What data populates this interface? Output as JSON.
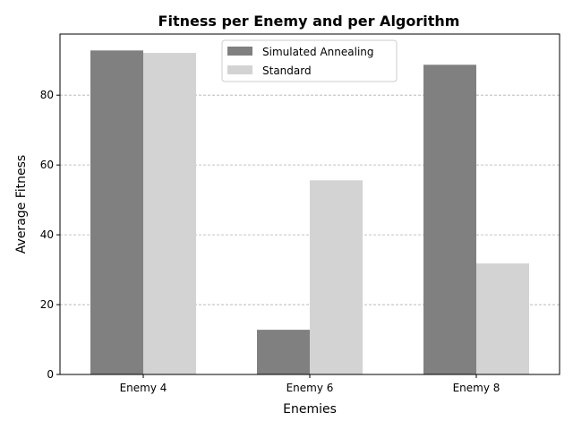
{
  "chart_data": {
    "type": "bar",
    "title": "Fitness per Enemy and per Algorithm",
    "xlabel": "Enemies",
    "ylabel": "Average Fitness",
    "categories": [
      "Enemy 4",
      "Enemy 6",
      "Enemy 8"
    ],
    "series": [
      {
        "name": "Simulated Annealing",
        "color": "#808080",
        "values": [
          92.8,
          12.8,
          88.7
        ]
      },
      {
        "name": "Standard",
        "color": "#d3d3d3",
        "values": [
          92.1,
          55.6,
          31.8
        ]
      }
    ],
    "ylim": [
      0,
      97.5
    ],
    "yticks": [
      0,
      20,
      40,
      60,
      80
    ],
    "grid": "y-dashed",
    "legend_position": "top-center"
  }
}
